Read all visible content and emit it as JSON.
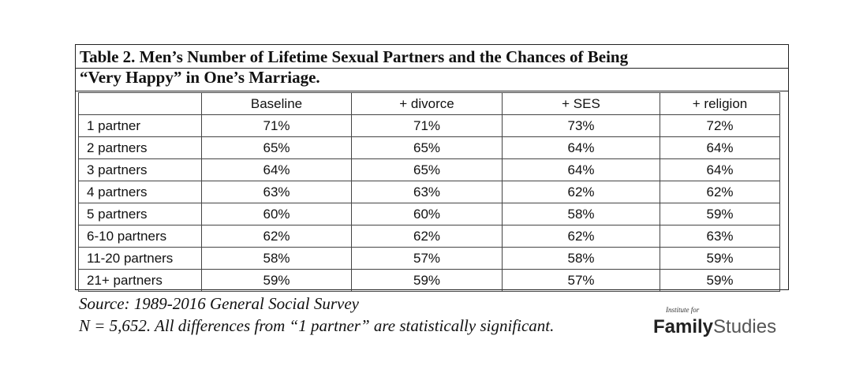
{
  "title": {
    "line1": "Table 2. Men’s Number of Lifetime Sexual Partners and the Chances of Being",
    "line2": "“Very Happy” in One’s Marriage."
  },
  "table": {
    "columns": [
      "",
      "Baseline",
      "+ divorce",
      "+ SES",
      "+ religion"
    ],
    "rows": [
      {
        "label": "1 partner",
        "values": [
          "71%",
          "71%",
          "73%",
          "72%"
        ]
      },
      {
        "label": "2 partners",
        "values": [
          "65%",
          "65%",
          "64%",
          "64%"
        ]
      },
      {
        "label": "3 partners",
        "values": [
          "64%",
          "65%",
          "64%",
          "64%"
        ]
      },
      {
        "label": "4 partners",
        "values": [
          "63%",
          "63%",
          "62%",
          "62%"
        ]
      },
      {
        "label": "5 partners",
        "values": [
          "60%",
          "60%",
          "58%",
          "59%"
        ]
      },
      {
        "label": "6-10 partners",
        "values": [
          "62%",
          "62%",
          "62%",
          "63%"
        ]
      },
      {
        "label": "11-20 partners",
        "values": [
          "58%",
          "57%",
          "58%",
          "59%"
        ]
      },
      {
        "label": "21+ partners",
        "values": [
          "59%",
          "59%",
          "57%",
          "59%"
        ]
      }
    ]
  },
  "source": "Source: 1989-2016 General Social Survey",
  "note": "N = 5,652. All differences from “1 partner” are statistically significant.",
  "logo": {
    "small": "Institute for",
    "bold": "Family",
    "light": "Studies"
  }
}
